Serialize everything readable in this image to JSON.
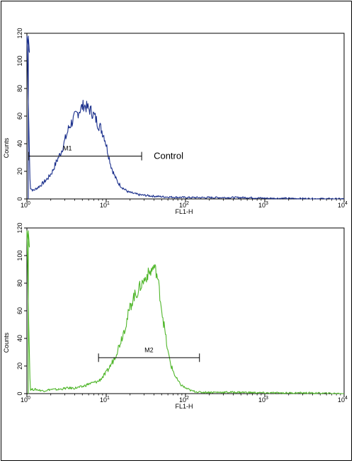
{
  "chart_data": [
    {
      "type": "line",
      "xlabel": "FL1-H",
      "ylabel": "Counts",
      "xscale": "log",
      "xlim": [
        1,
        10000
      ],
      "ylim": [
        0,
        120
      ],
      "xticks": [
        {
          "value": 1,
          "base": "10",
          "exp": "0"
        },
        {
          "value": 10,
          "base": "10",
          "exp": "1"
        },
        {
          "value": 100,
          "base": "10",
          "exp": "2"
        },
        {
          "value": 1000,
          "base": "10",
          "exp": "3"
        },
        {
          "value": 10000,
          "base": "10",
          "exp": "4"
        }
      ],
      "yticks": [
        "0",
        "20",
        "40",
        "60",
        "80",
        "100",
        "120"
      ],
      "color": "#1a2f8c",
      "annotation": "Control",
      "gate": {
        "label": "M1",
        "x_start": 1.05,
        "x_end": 28,
        "y": 31
      },
      "series": [
        {
          "x": [
            1,
            1.1,
            1.2,
            1.35,
            1.5,
            1.7,
            1.9,
            2.1,
            2.4,
            2.7,
            3.0,
            3.4,
            3.8,
            4.2,
            4.7,
            5.2,
            5.8,
            6.4,
            7.1,
            7.8,
            8.6,
            9.5,
            10.5,
            11.5,
            12.7,
            14,
            15.5,
            17,
            19,
            22,
            26,
            32,
            40,
            55,
            80,
            120,
            200,
            350,
            600,
            1000,
            10000
          ],
          "y": [
            118,
            8,
            6,
            8,
            10,
            13,
            16,
            20,
            28,
            34,
            42,
            52,
            57,
            61,
            65,
            68,
            66,
            64,
            60,
            55,
            51,
            45,
            34,
            24,
            17,
            12,
            9,
            7,
            5,
            4,
            3,
            2.5,
            2,
            1.5,
            1.2,
            1,
            1,
            1,
            1,
            0.5,
            0
          ]
        }
      ]
    },
    {
      "type": "line",
      "xlabel": "FL1-H",
      "ylabel": "Counts",
      "xscale": "log",
      "xlim": [
        1,
        10000
      ],
      "ylim": [
        0,
        120
      ],
      "xticks": [
        {
          "value": 1,
          "base": "10",
          "exp": "0"
        },
        {
          "value": 10,
          "base": "10",
          "exp": "1"
        },
        {
          "value": 100,
          "base": "10",
          "exp": "2"
        },
        {
          "value": 1000,
          "base": "10",
          "exp": "3"
        },
        {
          "value": 10000,
          "base": "10",
          "exp": "4"
        }
      ],
      "yticks": [
        "0",
        "20",
        "40",
        "60",
        "80",
        "100",
        "120"
      ],
      "color": "#4fb62a",
      "annotation": "",
      "gate": {
        "label": "M2",
        "x_start": 8,
        "x_end": 150,
        "y": 26
      },
      "series": [
        {
          "x": [
            1,
            1.1,
            1.3,
            1.6,
            2,
            2.5,
            3.2,
            4,
            5,
            6,
            7,
            8,
            9,
            10,
            11,
            12.5,
            14,
            16,
            18,
            20,
            22,
            24,
            27,
            30,
            33,
            36,
            40,
            43,
            46,
            50,
            55,
            60,
            66,
            75,
            85,
            100,
            120,
            150,
            200,
            300,
            500,
            1000,
            3000,
            10000
          ],
          "y": [
            118,
            3,
            3,
            2,
            3,
            3,
            4,
            4,
            5,
            7,
            8,
            9,
            12,
            15,
            19,
            25,
            32,
            42,
            52,
            62,
            70,
            72,
            78,
            82,
            86,
            88,
            92,
            88,
            78,
            62,
            45,
            30,
            20,
            12,
            7,
            4,
            2,
            1,
            1,
            1,
            1,
            0.5,
            0.5,
            0
          ]
        }
      ]
    }
  ]
}
